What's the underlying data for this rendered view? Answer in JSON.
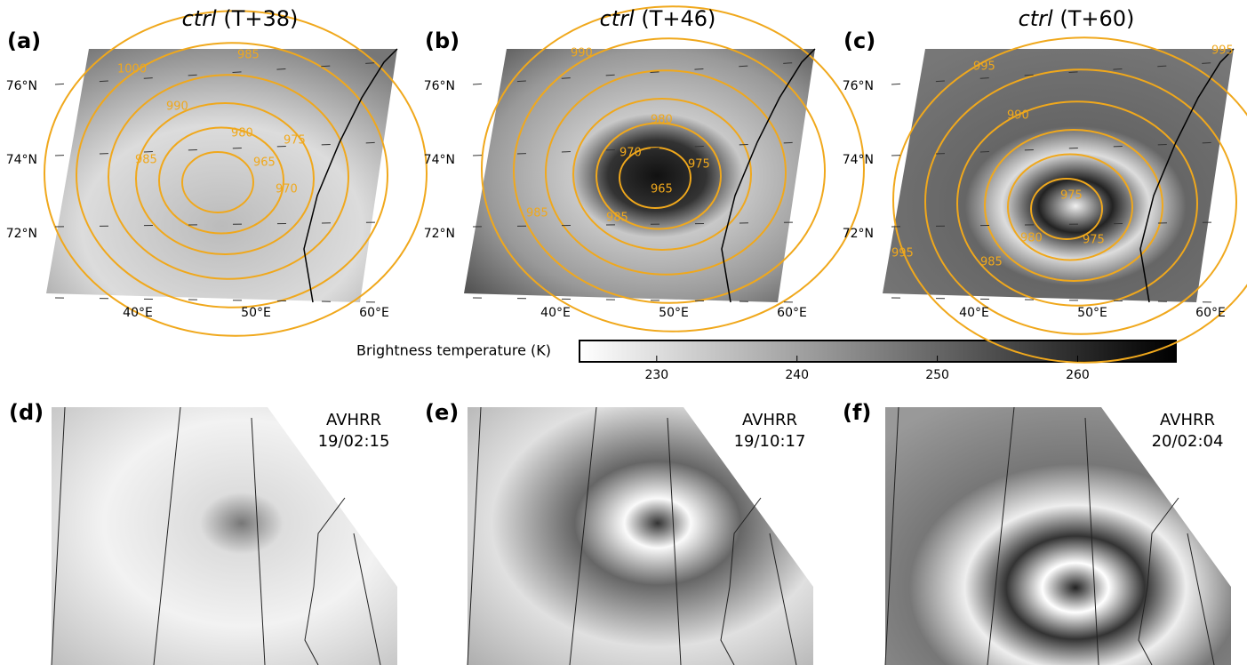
{
  "panels_top": [
    {
      "letter": "(a)",
      "model": "ctrl",
      "time": "(T+38)",
      "contours": [
        "1000",
        "990",
        "985",
        "985",
        "980",
        "975",
        "970",
        "965"
      ]
    },
    {
      "letter": "(b)",
      "model": "ctrl",
      "time": "(T+46)",
      "contours": [
        "990",
        "985",
        "980",
        "970",
        "975",
        "965",
        "985"
      ]
    },
    {
      "letter": "(c)",
      "model": "ctrl",
      "time": "(T+60)",
      "contours": [
        "995",
        "995",
        "990",
        "975",
        "980",
        "975",
        "985",
        "995"
      ]
    }
  ],
  "lat_labels": [
    "76°N",
    "74°N",
    "72°N"
  ],
  "lon_labels": [
    "40°E",
    "50°E",
    "60°E"
  ],
  "colorbar": {
    "label": "Brightness temperature (K)",
    "lim": [
      224.5,
      267
    ],
    "ticks": [
      230,
      240,
      250,
      260
    ]
  },
  "panels_bottom": [
    {
      "letter": "(d)",
      "source": "AVHRR",
      "time": "19/02:15"
    },
    {
      "letter": "(e)",
      "source": "AVHRR",
      "time": "19/10:17"
    },
    {
      "letter": "(f)",
      "source": "AVHRR",
      "time": "20/02:04"
    }
  ]
}
